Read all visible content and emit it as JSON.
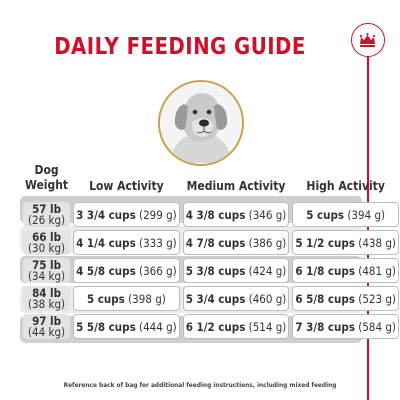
{
  "title": "DAILY FEEDING GUIDE",
  "badge_icon": "crown-icon",
  "brand_color": "#d0102a",
  "frame_color": "#cba04a",
  "headers": {
    "weight_line1": "Dog",
    "weight_line2": "Weight",
    "low": "Low Activity",
    "medium": "Medium Activity",
    "high": "High Activity"
  },
  "rows": [
    {
      "lb": "57 lb",
      "kg": "(26 kg)",
      "low_cups": "3 3/4 cups",
      "low_g": "(299 g)",
      "med_cups": "4 3/8 cups",
      "med_g": "(346 g)",
      "high_cups": "5 cups",
      "high_g": "(394 g)"
    },
    {
      "lb": "66 lb",
      "kg": "(30 kg)",
      "low_cups": "4 1/4 cups",
      "low_g": "(333 g)",
      "med_cups": "4 7/8 cups",
      "med_g": "(386 g)",
      "high_cups": "5 1/2 cups",
      "high_g": "(438 g)"
    },
    {
      "lb": "75 lb",
      "kg": "(34 kg)",
      "low_cups": "4 5/8 cups",
      "low_g": "(366 g)",
      "med_cups": "5 3/8 cups",
      "med_g": "(424 g)",
      "high_cups": "6 1/8 cups",
      "high_g": "(481 g)"
    },
    {
      "lb": "84 lb",
      "kg": "(38 kg)",
      "low_cups": "5 cups",
      "low_g": "(398 g)",
      "med_cups": "5 3/4 cups",
      "med_g": "(460 g)",
      "high_cups": "6 5/8 cups",
      "high_g": "(523 g)"
    },
    {
      "lb": "97 lb",
      "kg": "(44 kg)",
      "low_cups": "5 5/8 cups",
      "low_g": "(444 g)",
      "med_cups": "6 1/2 cups",
      "med_g": "(514 g)",
      "high_cups": "7 3/8 cups",
      "high_g": "(584 g)"
    }
  ],
  "footnote": "Reference back of bag for additional feeding instructions, including mixed feeding"
}
